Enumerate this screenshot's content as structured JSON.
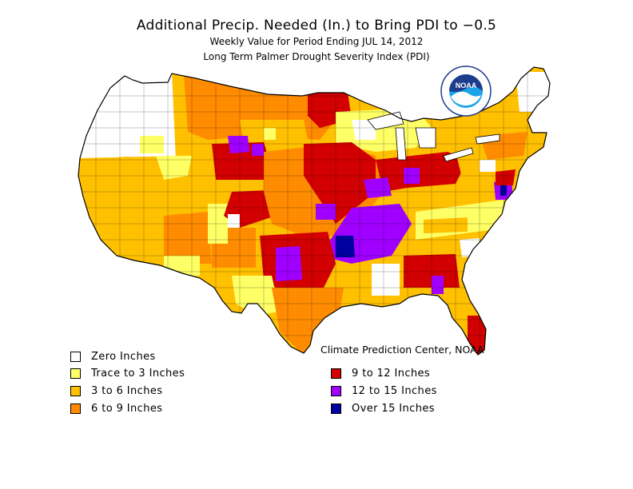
{
  "title": "Additional Precip. Needed (In.) to Bring PDI to −0.5",
  "subtitle_1": "Weekly Value for Period Ending JUL 14, 2012",
  "subtitle_2": "Long Term Palmer Drought Severity Index (PDI)",
  "credit": "Climate Prediction Center, NOAA",
  "logo": {
    "text": "NOAA",
    "icon": "noaa-logo"
  },
  "colors": {
    "zero": "#ffffff",
    "trace3": "#ffff66",
    "c3to6": "#ffc000",
    "c6to9": "#ff8c00",
    "c9to12": "#d20000",
    "c12to15": "#a000ff",
    "over15": "#0000a0",
    "border": "#000000"
  },
  "legend": {
    "left": [
      {
        "label": "Zero Inches",
        "color": "#ffffff"
      },
      {
        "label": "Trace to 3 Inches",
        "color": "#ffff66"
      },
      {
        "label": "3 to 6 Inches",
        "color": "#ffc000"
      },
      {
        "label": "6 to 9 Inches",
        "color": "#ff8c00"
      }
    ],
    "right": [
      {
        "label": "9 to 12 Inches",
        "color": "#d20000"
      },
      {
        "label": "12 to 15 Inches",
        "color": "#a000ff"
      },
      {
        "label": "Over 15 Inches",
        "color": "#0000a0"
      }
    ]
  }
}
